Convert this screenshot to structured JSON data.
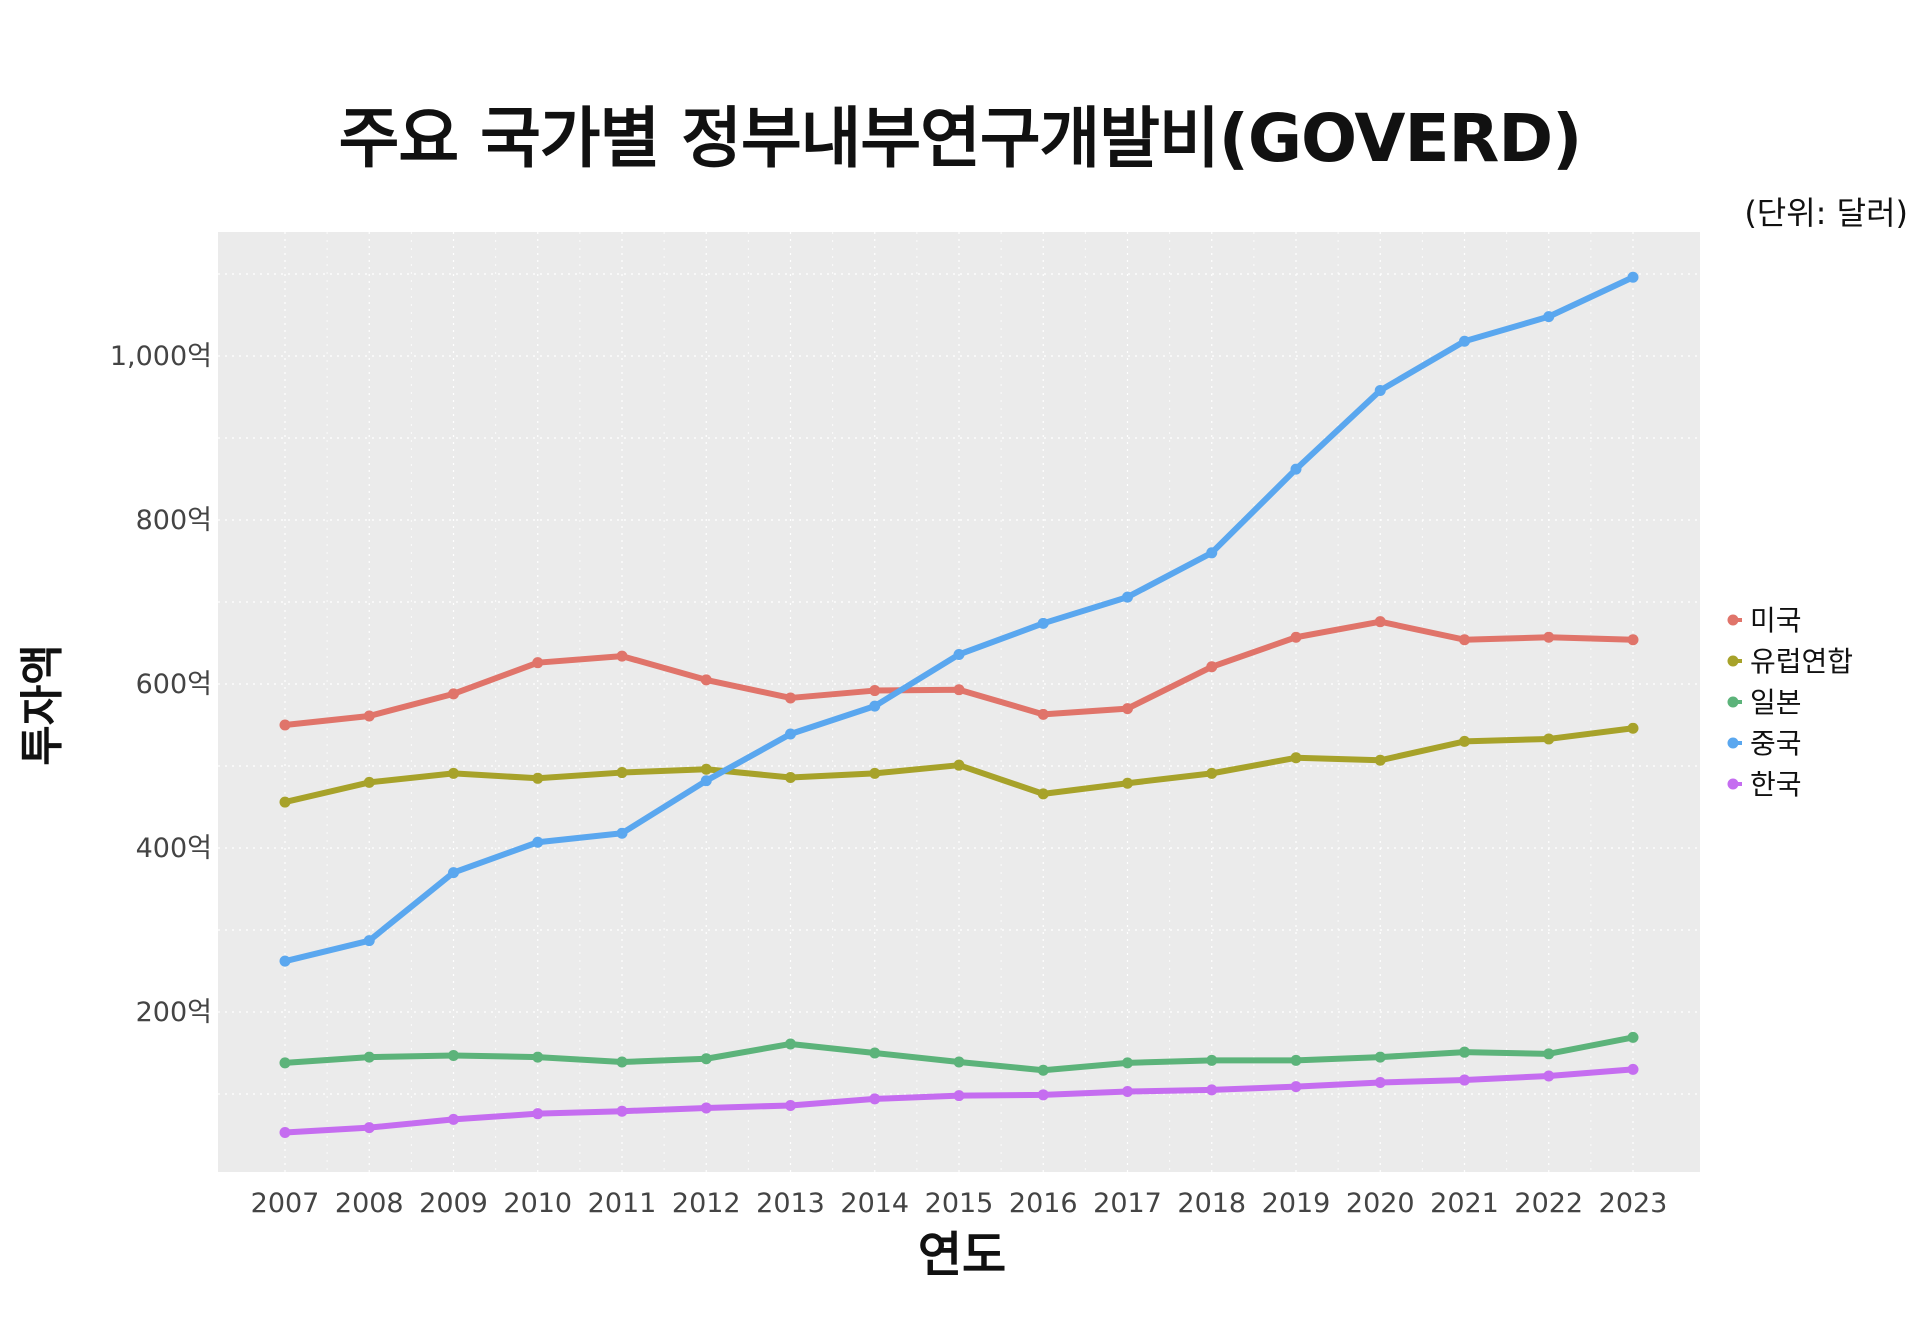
{
  "chart_data": {
    "type": "line",
    "title": "주요 국가별 정부내부연구개발비(GOVERD)",
    "unit_note": "(단위: 달러)",
    "xlabel": "연도",
    "ylabel": "투자액",
    "x": [
      2007,
      2008,
      2009,
      2010,
      2011,
      2012,
      2013,
      2014,
      2015,
      2016,
      2017,
      2018,
      2019,
      2020,
      2021,
      2022,
      2023
    ],
    "ylim": [
      0,
      1150
    ],
    "yticks": [
      {
        "value": 200,
        "label": "200억"
      },
      {
        "value": 400,
        "label": "400억"
      },
      {
        "value": 600,
        "label": "600억"
      },
      {
        "value": 800,
        "label": "800억"
      },
      {
        "value": 1000,
        "label": "1,000억"
      }
    ],
    "grid": true,
    "legend_position": "right",
    "series": [
      {
        "name": "미국",
        "color": "#e0746a",
        "values": [
          550,
          561,
          588,
          626,
          634,
          605,
          583,
          592,
          593,
          563,
          570,
          621,
          657,
          676,
          654,
          657,
          654
        ]
      },
      {
        "name": "유럽연합",
        "color": "#a7a22a",
        "values": [
          456,
          480,
          491,
          485,
          492,
          496,
          486,
          491,
          501,
          466,
          479,
          491,
          510,
          507,
          530,
          533,
          546
        ]
      },
      {
        "name": "일본",
        "color": "#5cb37a",
        "values": [
          138,
          145,
          147,
          145,
          139,
          143,
          161,
          150,
          139,
          129,
          138,
          141,
          141,
          145,
          151,
          149,
          169
        ]
      },
      {
        "name": "중국",
        "color": "#5aa7ef",
        "values": [
          262,
          287,
          370,
          407,
          418,
          482,
          539,
          573,
          636,
          674,
          706,
          760,
          862,
          958,
          1018,
          1048,
          1096
        ]
      },
      {
        "name": "한국",
        "color": "#c56df0",
        "values": [
          53,
          59,
          69,
          76,
          79,
          83,
          86,
          94,
          98,
          99,
          103,
          105,
          109,
          114,
          117,
          122,
          130
        ]
      }
    ]
  }
}
